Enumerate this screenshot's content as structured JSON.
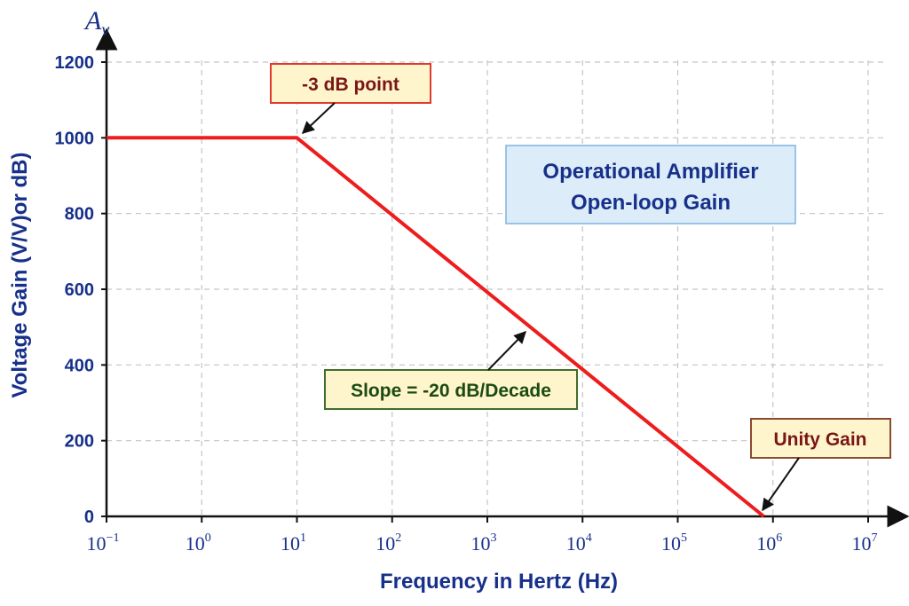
{
  "chart_data": {
    "type": "line",
    "title_lines": [
      "Operational Amplifier",
      "Open-loop Gain"
    ],
    "xlabel": "Frequency in Hertz (Hz)",
    "ylabel": "Voltage Gain (V/V)or dB)",
    "y_symbol": {
      "base": "A",
      "sub": "v"
    },
    "x_scale": "log",
    "x_ticks": [
      {
        "base": "10",
        "exp": "−1"
      },
      {
        "base": "10",
        "exp": "0"
      },
      {
        "base": "10",
        "exp": "1"
      },
      {
        "base": "10",
        "exp": "2"
      },
      {
        "base": "10",
        "exp": "3"
      },
      {
        "base": "10",
        "exp": "4"
      },
      {
        "base": "10",
        "exp": "5"
      },
      {
        "base": "10",
        "exp": "6"
      },
      {
        "base": "10",
        "exp": "7"
      }
    ],
    "x_tick_values": [
      0.1,
      1,
      10,
      100,
      1000,
      10000,
      100000,
      1000000,
      10000000
    ],
    "xlim": [
      0.1,
      20000000
    ],
    "y_ticks": [
      "0",
      "200",
      "400",
      "600",
      "800",
      "1000",
      "1200"
    ],
    "ylim": [
      0,
      1200
    ],
    "grid": true,
    "series": [
      {
        "x": [
          0.1,
          10,
          800000
        ],
        "y": [
          1000,
          1000,
          0
        ]
      }
    ],
    "annotations": [
      {
        "id": "minus3db",
        "text": "-3 dB point",
        "target": [
          10,
          1000
        ]
      },
      {
        "id": "slope",
        "text": "Slope = -20 dB/Decade",
        "target": [
          3000,
          490
        ]
      },
      {
        "id": "unity",
        "text": "Unity Gain",
        "target": [
          800000,
          0
        ]
      }
    ]
  },
  "colors": {
    "line": "#ee1c1c",
    "axis_text": "#17308a",
    "grid": "#c4c4c4",
    "title_box_fill": "#dcecf9",
    "title_box_border": "#7fb4e0",
    "note_fill": "#fff5cc",
    "note_border_red": "#e03a2e",
    "note_text_red": "#7a1616",
    "note_border_green": "#3f6e2c",
    "note_text_green": "#1b4a12",
    "note_border_brown": "#8a4a2e"
  }
}
